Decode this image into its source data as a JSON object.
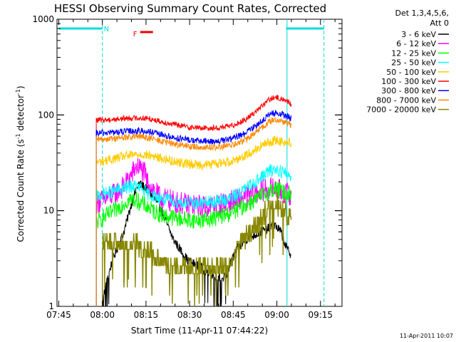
{
  "chart_data": {
    "type": "line",
    "title": "HESSI Observing Summary Count Rates, Corrected",
    "xlabel": "Start Time (11-Apr-11 07:44:22)",
    "ylabel": "Corrected Count Rate (s",
    "ylabel_sup1": "-1",
    "ylabel_mid": " detector",
    "ylabel_sup2": "-1",
    "ylabel_end": ")",
    "yscale": "log",
    "ylim": [
      1,
      1000
    ],
    "xlim_minutes": [
      0,
      98
    ],
    "x_ticks": [
      {
        "label": "07:45",
        "minutes": 0.6
      },
      {
        "label": "08:00",
        "minutes": 15.6
      },
      {
        "label": "08:15",
        "minutes": 30.6
      },
      {
        "label": "08:30",
        "minutes": 45.6
      },
      {
        "label": "08:45",
        "minutes": 60.6
      },
      {
        "label": "09:00",
        "minutes": 75.6
      },
      {
        "label": "09:15",
        "minutes": 90.6
      }
    ],
    "y_ticks": [
      {
        "label": "1",
        "value": 1
      },
      {
        "label": "10",
        "value": 10
      },
      {
        "label": "100",
        "value": 100
      },
      {
        "label": "1000",
        "value": 1000
      }
    ],
    "legend_header": [
      "Det 1,3,4,5,6,",
      "Att 0"
    ],
    "legend_position": "right",
    "data_start_minutes": 13,
    "data_end_minutes": 80.5,
    "series": [
      {
        "name": "3 - 6 keV",
        "color": "#000000",
        "x": [
          15.6,
          19,
          23,
          26,
          28,
          30,
          33,
          36,
          38,
          40,
          45,
          50,
          55,
          58,
          60,
          62,
          65,
          70,
          75,
          77,
          79,
          80.5
        ],
        "values": [
          1.2,
          3,
          6,
          13,
          19,
          18,
          14,
          10,
          7,
          5,
          3,
          2.5,
          2,
          2,
          3,
          4,
          5,
          6,
          7,
          6,
          4,
          3.5
        ]
      },
      {
        "name": "6 - 12 keV",
        "color": "#ff00ff",
        "x": [
          13.5,
          16,
          20,
          23,
          25,
          27,
          28,
          30,
          31,
          33,
          35,
          38,
          40,
          45,
          50,
          55,
          60,
          65,
          70,
          73,
          75,
          77,
          79,
          80.5
        ],
        "values": [
          12,
          13,
          15,
          18,
          22,
          28,
          29,
          25,
          20,
          17,
          14,
          13,
          12.5,
          11.5,
          11,
          11.5,
          12.5,
          14,
          16,
          17,
          17,
          16,
          15,
          15
        ]
      },
      {
        "name": "12 - 25 keV",
        "color": "#00ff00",
        "x": [
          13.5,
          16,
          20,
          23,
          25,
          27,
          29,
          31,
          33,
          36,
          40,
          45,
          50,
          55,
          60,
          65,
          70,
          73,
          75,
          77,
          79,
          80.5
        ],
        "values": [
          7.5,
          8.5,
          10,
          12,
          13,
          13,
          12,
          11,
          10,
          9,
          8.5,
          8,
          8,
          8.5,
          9.5,
          11.5,
          14,
          16,
          17,
          16,
          15,
          15
        ]
      },
      {
        "name": "25 - 50 keV",
        "color": "#00ffff",
        "x": [
          13.5,
          16,
          20,
          23,
          25,
          27,
          29,
          31,
          34,
          37,
          40,
          45,
          50,
          55,
          60,
          65,
          70,
          73,
          75,
          77,
          79,
          80.5
        ],
        "values": [
          14,
          15,
          16,
          17,
          18,
          18,
          17,
          15,
          14,
          13,
          12.5,
          12,
          12,
          12.5,
          13.5,
          17,
          22,
          26,
          27,
          26,
          24,
          23
        ]
      },
      {
        "name": "50 - 100 keV",
        "color": "#ffcc00",
        "x": [
          13.5,
          16,
          20,
          23,
          26,
          29,
          31,
          33,
          36,
          40,
          45,
          50,
          55,
          60,
          65,
          70,
          73,
          75,
          77,
          79,
          80.5
        ],
        "values": [
          32,
          33,
          35,
          37,
          38,
          39,
          38,
          37,
          35,
          33,
          31,
          30,
          31,
          33,
          38,
          47,
          52,
          54,
          53,
          52,
          51
        ]
      },
      {
        "name": "100 - 300 keV",
        "color": "#ff0000",
        "x": [
          13.5,
          16,
          20,
          23,
          26,
          29,
          31,
          33,
          36,
          40,
          45,
          50,
          55,
          60,
          65,
          70,
          73,
          75,
          77,
          79,
          80.5
        ],
        "values": [
          88,
          89,
          90,
          92,
          93,
          93,
          92,
          90,
          85,
          80,
          75,
          73,
          73,
          77,
          90,
          120,
          145,
          152,
          148,
          140,
          130
        ]
      },
      {
        "name": "300 - 800 keV",
        "color": "#0000ff",
        "x": [
          13.5,
          16,
          20,
          23,
          26,
          29,
          31,
          33,
          36,
          40,
          45,
          50,
          55,
          60,
          65,
          70,
          73,
          75,
          77,
          79,
          80.5
        ],
        "values": [
          64,
          65,
          66,
          67,
          68,
          68,
          67,
          65,
          62,
          58,
          55,
          53,
          53,
          56,
          65,
          85,
          100,
          105,
          102,
          97,
          92
        ]
      },
      {
        "name": "800 - 7000 keV",
        "color": "#ff8800",
        "x": [
          13.5,
          16,
          20,
          23,
          26,
          29,
          31,
          33,
          36,
          40,
          45,
          50,
          55,
          60,
          65,
          70,
          73,
          75,
          77,
          79,
          80.5
        ],
        "values": [
          55,
          56,
          57,
          58,
          59,
          59,
          58,
          56,
          53,
          50,
          47,
          46,
          46,
          48,
          55,
          72,
          85,
          89,
          87,
          83,
          78
        ]
      },
      {
        "name": "7000 - 20000 keV",
        "color": "#888800",
        "x": [
          15.6,
          19,
          23,
          26,
          30,
          33,
          36,
          40,
          45,
          50,
          55,
          58,
          60,
          62,
          65,
          70,
          73,
          75,
          77,
          79,
          80.5
        ],
        "values": [
          4.5,
          4.5,
          4.5,
          4.5,
          4,
          3.5,
          3,
          2.5,
          2.5,
          2.5,
          2.5,
          2.8,
          3,
          4,
          5.5,
          8,
          11,
          12,
          11,
          9,
          8
        ]
      }
    ],
    "annotations": {
      "att_state_label": "N",
      "flare_flag_label": "F",
      "saa_bars": [
        {
          "x_start": 0.6,
          "x_end": 15.6,
          "value": 800
        },
        {
          "x_start": 78.8,
          "x_end": 91.8,
          "value": 800
        }
      ],
      "vertical_lines": [
        {
          "minutes": 15.6,
          "style": "dashed"
        },
        {
          "minutes": 79.1,
          "style": "solid"
        },
        {
          "minutes": 91.8,
          "style": "dashed"
        }
      ],
      "flare_bar": {
        "x_start": 28.6,
        "x_end": 33.0,
        "value": 800
      },
      "saa_color": "#00dddd",
      "flare_color": "#ee0000"
    },
    "timestamp": "11-Apr-2011 10:07"
  }
}
